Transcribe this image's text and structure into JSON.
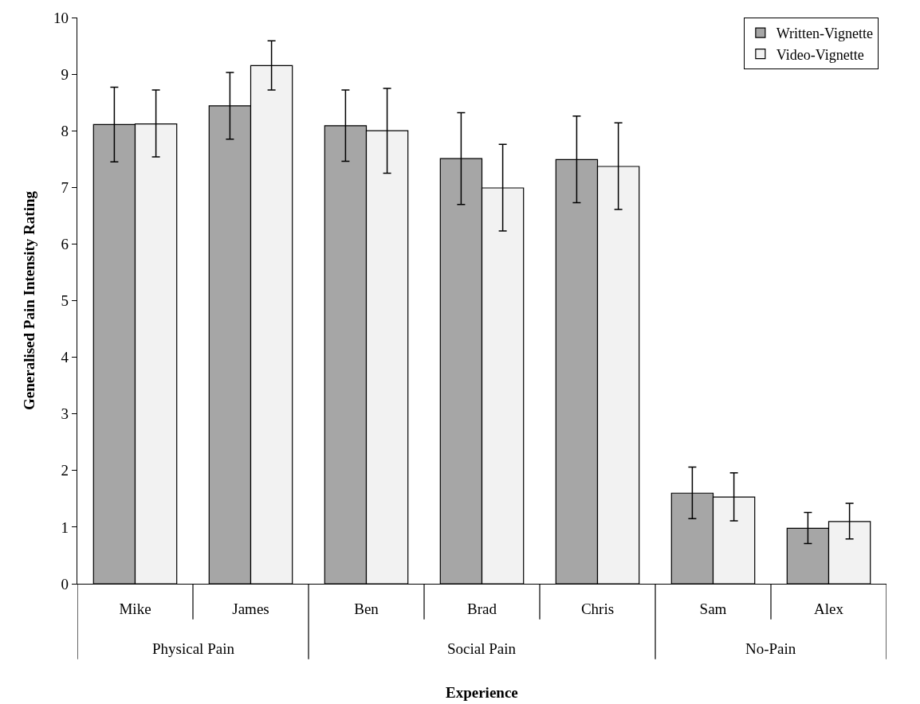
{
  "chart_data": {
    "type": "bar",
    "xlabel": "Experience",
    "ylabel": "Generalised Pain Intensity Rating",
    "categories": [
      "Mike",
      "James",
      "Ben",
      "Brad",
      "Chris",
      "Sam",
      "Alex"
    ],
    "series": [
      {
        "name": "Written-Vignette",
        "color": "#a6a6a6",
        "values": [
          8.11,
          8.44,
          8.09,
          7.51,
          7.49,
          1.6,
          0.98
        ],
        "errors": [
          [
            7.45,
            8.77
          ],
          [
            7.85,
            9.03
          ],
          [
            7.46,
            8.72
          ],
          [
            6.7,
            8.32
          ],
          [
            6.73,
            8.26
          ],
          [
            1.15,
            2.06
          ],
          [
            0.71,
            1.26
          ]
        ]
      },
      {
        "name": "Video-Vignette",
        "color": "#f2f2f2",
        "values": [
          8.12,
          9.15,
          8.0,
          6.99,
          7.37,
          1.53,
          1.1
        ],
        "errors": [
          [
            7.54,
            8.72
          ],
          [
            8.72,
            9.59
          ],
          [
            7.25,
            8.75
          ],
          [
            6.23,
            7.76
          ],
          [
            6.61,
            8.14
          ],
          [
            1.11,
            1.96
          ],
          [
            0.79,
            1.42
          ]
        ]
      }
    ],
    "annotations": [
      "Physical Pain",
      "Social Pain",
      "No-Pain"
    ],
    "ylim": [
      0,
      10
    ],
    "yticks": [
      0,
      1,
      2,
      3,
      4,
      5,
      6,
      7,
      8,
      9,
      10
    ],
    "legend": "top right"
  }
}
